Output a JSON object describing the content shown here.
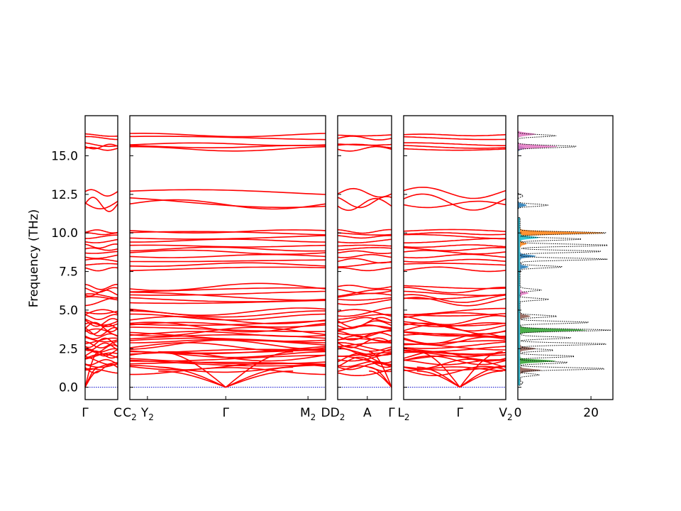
{
  "chart_data": {
    "type": "line",
    "title": "",
    "ylabel": "Frequency (THz)",
    "ylim": [
      -0.8,
      17.6
    ],
    "y_ticks": [
      0.0,
      2.5,
      5.0,
      7.5,
      10.0,
      12.5,
      15.0
    ],
    "y_tick_labels": [
      "0.0",
      "2.5",
      "5.0",
      "7.5",
      "10.0",
      "12.5",
      "15.0"
    ],
    "band_color": "#ff0000",
    "zero_line_color": "#0000cc",
    "panels": [
      {
        "id": "gamma-c",
        "x_labels": [
          {
            "text": "Γ",
            "sub": "",
            "pos": 0.0
          },
          {
            "text": "C",
            "sub": "",
            "pos": 1.0
          }
        ],
        "acoustic": "left"
      },
      {
        "id": "c2-m2",
        "x_labels": [
          {
            "text": "C",
            "sub": "2",
            "pos": 0.0
          },
          {
            "text": "Y",
            "sub": "2",
            "pos": 0.09
          },
          {
            "text": "Γ",
            "sub": "",
            "pos": 0.49
          },
          {
            "text": "M",
            "sub": "2",
            "pos": 0.91
          },
          {
            "text": "D",
            "sub": "",
            "pos": 1.0
          }
        ],
        "acoustic": "center"
      },
      {
        "id": "d2-gamma",
        "x_labels": [
          {
            "text": "D",
            "sub": "2",
            "pos": 0.0
          },
          {
            "text": "A",
            "sub": "",
            "pos": 0.55
          },
          {
            "text": "Γ",
            "sub": "",
            "pos": 1.0
          }
        ],
        "acoustic": "right"
      },
      {
        "id": "l2-v2",
        "x_labels": [
          {
            "text": "L",
            "sub": "2",
            "pos": 0.0
          },
          {
            "text": "Γ",
            "sub": "",
            "pos": 0.55
          },
          {
            "text": "V",
            "sub": "2",
            "pos": 1.0
          }
        ],
        "acoustic": "center"
      }
    ],
    "bands_thz": [
      1.05,
      1.2,
      1.35,
      1.5,
      1.62,
      1.75,
      1.88,
      2.0,
      2.12,
      2.25,
      2.38,
      2.5,
      2.62,
      2.75,
      2.88,
      3.0,
      3.15,
      3.3,
      3.45,
      3.6,
      3.75,
      3.9,
      4.05,
      4.2,
      4.35,
      4.55,
      4.75,
      4.9,
      5.55,
      5.75,
      5.9,
      6.1,
      6.3,
      6.5,
      7.65,
      7.95,
      8.2,
      8.5,
      8.75,
      8.95,
      9.15,
      9.5,
      9.75,
      9.95,
      10.1,
      11.85,
      12.0,
      12.6,
      15.45,
      15.6,
      15.75,
      16.15,
      16.35
    ],
    "dos": {
      "xlim": [
        0,
        26
      ],
      "x_ticks": [
        0,
        20
      ],
      "x_tick_labels": [
        "0",
        "20"
      ],
      "total_peaks": [
        {
          "f": 0.3,
          "v": 1.5
        },
        {
          "f": 0.8,
          "v": 6.0
        },
        {
          "f": 1.2,
          "v": 24.5
        },
        {
          "f": 1.6,
          "v": 14.0
        },
        {
          "f": 2.0,
          "v": 16.0
        },
        {
          "f": 2.4,
          "v": 10.0
        },
        {
          "f": 2.8,
          "v": 25.0
        },
        {
          "f": 3.2,
          "v": 15.0
        },
        {
          "f": 3.7,
          "v": 25.5
        },
        {
          "f": 4.2,
          "v": 20.0
        },
        {
          "f": 4.6,
          "v": 11.0
        },
        {
          "f": 5.7,
          "v": 8.5
        },
        {
          "f": 6.3,
          "v": 6.5
        },
        {
          "f": 7.8,
          "v": 12.5
        },
        {
          "f": 8.3,
          "v": 24.5
        },
        {
          "f": 8.8,
          "v": 23.5
        },
        {
          "f": 9.2,
          "v": 25.5
        },
        {
          "f": 9.6,
          "v": 18.0
        },
        {
          "f": 10.0,
          "v": 25.0
        },
        {
          "f": 11.8,
          "v": 8.5
        },
        {
          "f": 12.4,
          "v": 1.5
        },
        {
          "f": 15.6,
          "v": 16.5
        },
        {
          "f": 16.3,
          "v": 10.5
        }
      ],
      "partials": [
        {
          "color": "#2ca02c",
          "peaks": [
            {
              "f": 1.7,
              "v": 10.5
            },
            {
              "f": 3.7,
              "v": 19.0
            }
          ]
        },
        {
          "color": "#8c564b",
          "peaks": [
            {
              "f": 1.1,
              "v": 6.5
            },
            {
              "f": 2.5,
              "v": 5.0
            },
            {
              "f": 4.6,
              "v": 3.5
            }
          ]
        },
        {
          "color": "#1f77b4",
          "peaks": [
            {
              "f": 7.8,
              "v": 3.0
            },
            {
              "f": 8.5,
              "v": 5.0
            },
            {
              "f": 11.8,
              "v": 2.5
            },
            {
              "f": 15.5,
              "v": 2.0
            }
          ]
        },
        {
          "color": "#ff7f0e",
          "peaks": [
            {
              "f": 10.0,
              "v": 24.0
            },
            {
              "f": 9.3,
              "v": 2.5
            }
          ]
        },
        {
          "color": "#e377c2",
          "peaks": [
            {
              "f": 6.1,
              "v": 3.0
            },
            {
              "f": 15.6,
              "v": 11.0
            },
            {
              "f": 16.4,
              "v": 5.0
            }
          ]
        },
        {
          "color": "#17becf",
          "peaks": [
            {
              "f": 9.7,
              "v": 6.0
            }
          ]
        }
      ]
    }
  }
}
